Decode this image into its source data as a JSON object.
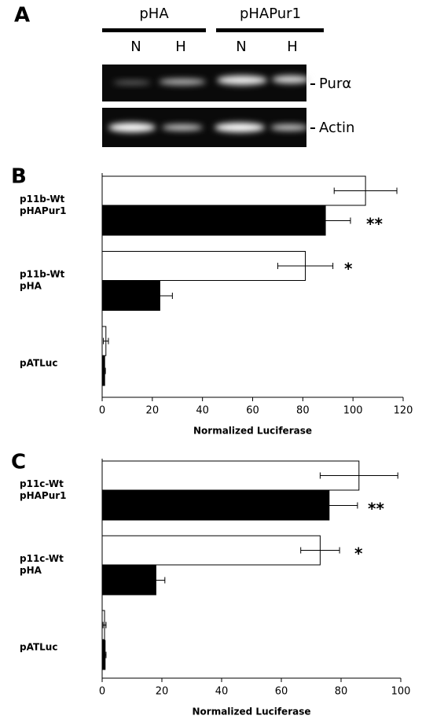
{
  "panel_a": {
    "letter": "A",
    "groups": [
      "pHA",
      "pHAPur1"
    ],
    "lanes": [
      "N",
      "H",
      "N",
      "H"
    ],
    "bands": [
      "Purα",
      "Actin"
    ]
  },
  "chart_data": [
    {
      "type": "bar",
      "letter": "B",
      "xlabel": "Normalized Luciferase",
      "categories": [
        [
          "p11b-Wt",
          "pHAPur1"
        ],
        [
          "p11b-Wt",
          "pHA"
        ],
        [
          "pATLuc"
        ]
      ],
      "series": [
        {
          "color": "#ffffff",
          "values": [
            105,
            81,
            1.5
          ],
          "errors": [
            12.5,
            11,
            1
          ]
        },
        {
          "color": "#000000",
          "values": [
            89,
            23,
            1
          ],
          "errors": [
            10,
            5,
            0.3
          ]
        }
      ],
      "annotations": [
        "**",
        "*"
      ],
      "xlim": [
        0,
        120
      ],
      "xticks": [
        0,
        20,
        40,
        60,
        80,
        100,
        120
      ]
    },
    {
      "type": "bar",
      "letter": "C",
      "xlabel": "Normalized Luciferase",
      "categories": [
        [
          "p11c-Wt",
          "pHAPur1"
        ],
        [
          "p11c-Wt",
          "pHA"
        ],
        [
          "pATLuc"
        ]
      ],
      "series": [
        {
          "color": "#ffffff",
          "values": [
            86,
            73,
            0.8
          ],
          "errors": [
            13,
            6.5,
            0.5
          ]
        },
        {
          "color": "#000000",
          "values": [
            76,
            18,
            1
          ],
          "errors": [
            9.5,
            3,
            0.3
          ]
        }
      ],
      "annotations": [
        "**",
        "*"
      ],
      "xlim": [
        0,
        100
      ],
      "xticks": [
        0,
        20,
        40,
        60,
        80,
        100
      ]
    }
  ]
}
